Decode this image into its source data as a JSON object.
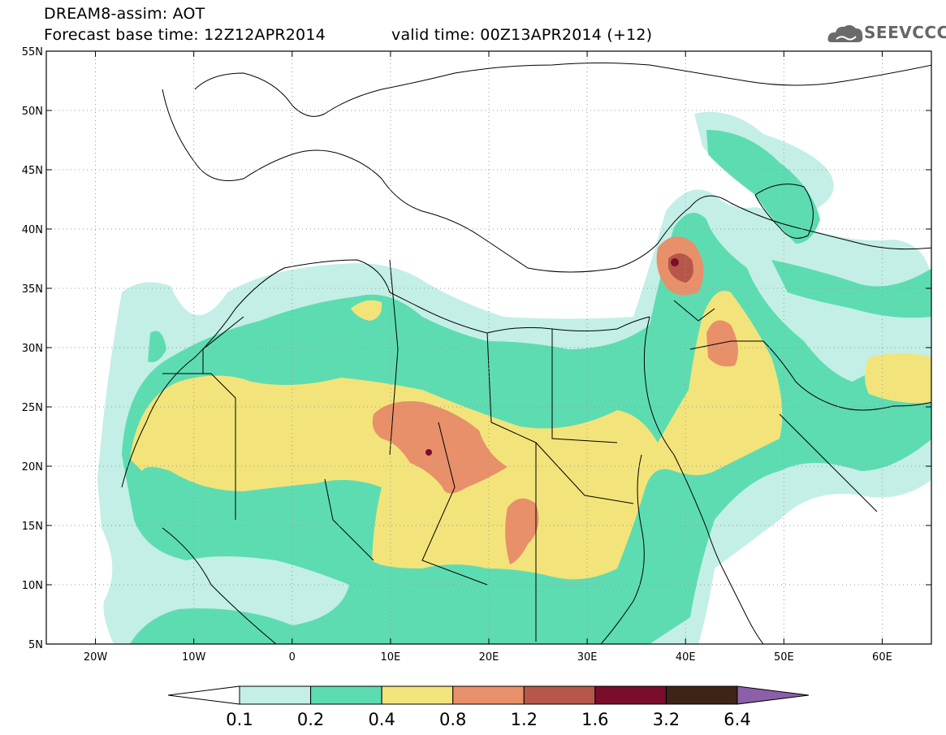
{
  "header": {
    "title_line1": "DREAM8-assim: AOT",
    "base_time": "Forecast base time: 12Z12APR2014",
    "valid_time": "valid time: 00Z13APR2014 (+12)"
  },
  "logo": {
    "text": "SEEVCCC",
    "icon": "cloud-icon"
  },
  "map": {
    "lon_range": [
      -25,
      65
    ],
    "lat_range": [
      5,
      55
    ],
    "lon_ticks": [
      {
        "value": -20,
        "label": "20W"
      },
      {
        "value": -10,
        "label": "10W"
      },
      {
        "value": 0,
        "label": "0"
      },
      {
        "value": 10,
        "label": "10E"
      },
      {
        "value": 20,
        "label": "20E"
      },
      {
        "value": 30,
        "label": "30E"
      },
      {
        "value": 40,
        "label": "40E"
      },
      {
        "value": 50,
        "label": "50E"
      },
      {
        "value": 60,
        "label": "60E"
      }
    ],
    "lat_ticks": [
      {
        "value": 5,
        "label": "5N"
      },
      {
        "value": 10,
        "label": "10N"
      },
      {
        "value": 15,
        "label": "15N"
      },
      {
        "value": 20,
        "label": "20N"
      },
      {
        "value": 25,
        "label": "25N"
      },
      {
        "value": 30,
        "label": "30N"
      },
      {
        "value": 35,
        "label": "35N"
      },
      {
        "value": 40,
        "label": "40N"
      },
      {
        "value": 45,
        "label": "45N"
      },
      {
        "value": 50,
        "label": "50N"
      },
      {
        "value": 55,
        "label": "55N"
      }
    ],
    "grid": "dotted"
  },
  "colorbar": {
    "labels": [
      "0.1",
      "0.2",
      "0.4",
      "0.8",
      "1.2",
      "1.6",
      "3.2",
      "6.4"
    ],
    "low_color": "#ffffff",
    "bins": [
      "#c3efe6",
      "#5ddcb2",
      "#f2e47a",
      "#e8906a",
      "#b6574a",
      "#7a0d2b",
      "#3d2416"
    ],
    "high_color": "#8b60a8"
  }
}
